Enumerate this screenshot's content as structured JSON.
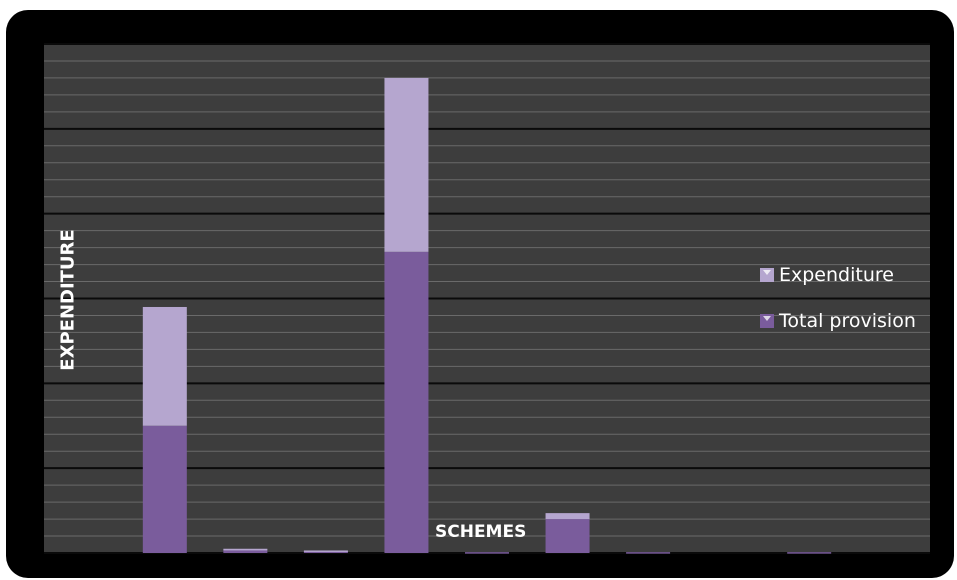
{
  "chart_data": {
    "type": "bar",
    "stacked": true,
    "xlabel": "SCHEMES",
    "ylabel": "EXPENDITURE",
    "categories": [
      "",
      "",
      "",
      "",
      "",
      "",
      "",
      "",
      "",
      "",
      ""
    ],
    "series": [
      {
        "name": "Total provision",
        "color": "#7a5c9c",
        "values": [
          0,
          15,
          0.3,
          0.2,
          35.5,
          0.1,
          4,
          0.1,
          0,
          0.1,
          0
        ]
      },
      {
        "name": "Expenditure",
        "color": "#b5a6cf",
        "values": [
          0,
          14,
          0.2,
          0.1,
          20.5,
          0,
          0.7,
          0,
          0,
          0,
          0
        ]
      }
    ],
    "ylim": [
      0,
      60
    ],
    "grid": true,
    "legend_position": "right"
  }
}
